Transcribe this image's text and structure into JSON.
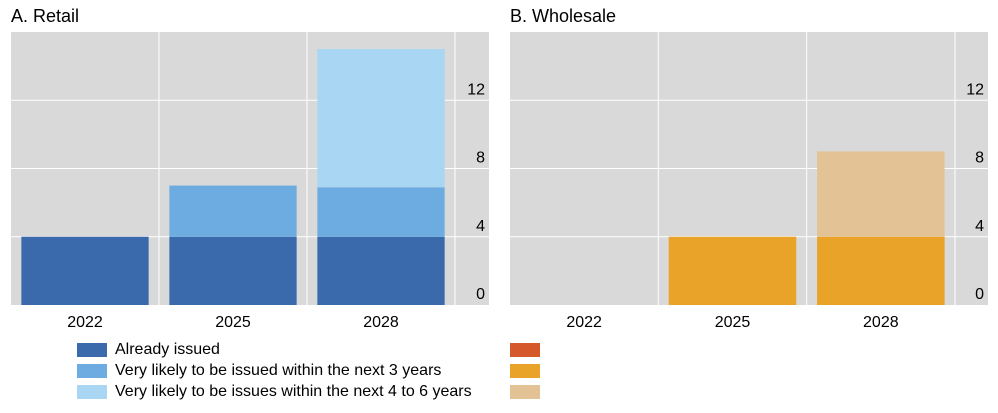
{
  "chart_data": [
    {
      "type": "bar",
      "stacked": true,
      "title": "A. Retail",
      "categories": [
        "2022",
        "2025",
        "2028"
      ],
      "ylim": [
        0,
        16
      ],
      "yticks": [
        0,
        4,
        8,
        12
      ],
      "y_axis_side": "right",
      "grid": true,
      "series": [
        {
          "name": "Already issued",
          "color": "#3a6aab",
          "values": [
            4,
            4,
            4
          ]
        },
        {
          "name": "Very likely to be issued within the next 3 years",
          "color": "#6cace0",
          "values": [
            0,
            3,
            2.9
          ]
        },
        {
          "name": "Very likely to be issues within the next 4 to 6 years",
          "color": "#a8d6f3",
          "values": [
            0,
            0,
            8.1
          ]
        }
      ]
    },
    {
      "type": "bar",
      "stacked": true,
      "title": "B. Wholesale",
      "categories": [
        "2022",
        "2025",
        "2028"
      ],
      "ylim": [
        0,
        16
      ],
      "yticks": [
        0,
        4,
        8,
        12
      ],
      "y_axis_side": "right",
      "grid": true,
      "series": [
        {
          "color": "#d5582a",
          "values": [
            0,
            0,
            0
          ]
        },
        {
          "color": "#e9a328",
          "values": [
            0,
            4,
            4
          ]
        },
        {
          "color": "#e3c395",
          "values": [
            0,
            0,
            5
          ]
        }
      ]
    }
  ],
  "legend": {
    "placement": "bottom",
    "items": [
      {
        "label": "Already issued",
        "color": "#3a6aab",
        "color_b": "#d5582a"
      },
      {
        "label": "Very likely to be issued within the next 3 years",
        "color": "#6cace0",
        "color_b": "#e9a328"
      },
      {
        "label": "Very likely to be issues within the next 4 to 6 years",
        "color": "#a8d6f3",
        "color_b": "#e3c395"
      }
    ]
  }
}
